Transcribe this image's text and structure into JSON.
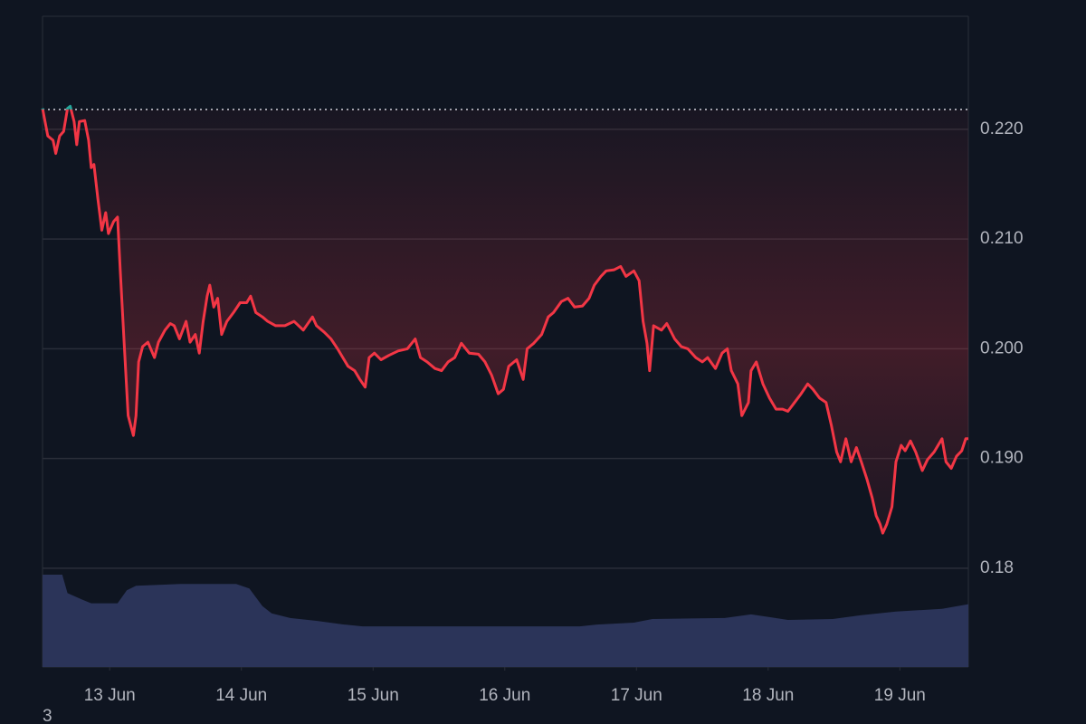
{
  "chart_data": {
    "type": "line",
    "x": [
      12.49,
      12.53,
      12.57,
      12.59,
      12.62,
      12.65,
      12.68,
      12.7,
      12.73,
      12.75,
      12.77,
      12.81,
      12.84,
      12.86,
      12.88,
      12.91,
      12.94,
      12.97,
      12.99,
      13.03,
      13.06,
      13.08,
      13.11,
      13.14,
      13.16,
      13.18,
      13.2,
      13.22,
      13.25,
      13.29,
      13.34,
      13.37,
      13.42,
      13.46,
      13.49,
      13.53,
      13.58,
      13.61,
      13.65,
      13.68,
      13.71,
      13.74,
      13.76,
      13.79,
      13.82,
      13.85,
      13.89,
      13.94,
      13.99,
      14.04,
      14.07,
      14.11,
      14.16,
      14.2,
      14.26,
      14.33,
      14.4,
      14.47,
      14.54,
      14.57,
      14.63,
      14.68,
      14.73,
      14.77,
      14.81,
      14.86,
      14.9,
      14.94,
      14.97,
      15.01,
      15.06,
      15.12,
      15.19,
      15.26,
      15.32,
      15.36,
      15.41,
      15.47,
      15.52,
      15.57,
      15.62,
      15.67,
      15.73,
      15.8,
      15.85,
      15.9,
      15.95,
      15.99,
      16.03,
      16.09,
      16.14,
      16.17,
      16.22,
      16.28,
      16.33,
      16.37,
      16.43,
      16.48,
      16.53,
      16.59,
      16.64,
      16.68,
      16.73,
      16.77,
      16.83,
      16.88,
      16.92,
      16.98,
      17.02,
      17.05,
      17.08,
      17.1,
      17.13,
      17.19,
      17.23,
      17.29,
      17.34,
      17.39,
      17.45,
      17.5,
      17.54,
      17.6,
      17.65,
      17.69,
      17.72,
      17.77,
      17.8,
      17.85,
      17.87,
      17.91,
      17.96,
      18.01,
      18.06,
      18.11,
      18.15,
      18.2,
      18.25,
      18.3,
      18.34,
      18.39,
      18.44,
      18.48,
      18.52,
      18.55,
      18.59,
      18.63,
      18.67,
      18.71,
      18.75,
      18.79,
      18.82,
      18.85,
      18.87,
      18.9,
      18.94,
      18.97,
      19.01,
      19.04,
      19.08,
      19.12,
      19.17,
      19.21,
      19.26,
      19.32,
      19.35,
      19.39,
      19.43,
      19.47,
      19.5,
      19.52
    ],
    "series": [
      {
        "color": "#f23645",
        "color_above": "#26a69a",
        "values": [
          0.2219,
          0.2194,
          0.219,
          0.2178,
          0.2194,
          0.2198,
          0.2219,
          0.2221,
          0.2207,
          0.2186,
          0.2207,
          0.2208,
          0.219,
          0.2165,
          0.2168,
          0.2137,
          0.2108,
          0.2124,
          0.2105,
          0.2116,
          0.212,
          0.2071,
          0.2005,
          0.1939,
          0.193,
          0.1921,
          0.1939,
          0.1988,
          0.2002,
          0.2006,
          0.1992,
          0.2006,
          0.2017,
          0.2023,
          0.2021,
          0.2009,
          0.2025,
          0.2006,
          0.2013,
          0.1996,
          0.2025,
          0.2048,
          0.2058,
          0.2038,
          0.2046,
          0.2013,
          0.2025,
          0.2033,
          0.2042,
          0.2042,
          0.2048,
          0.2033,
          0.2029,
          0.2025,
          0.2021,
          0.2021,
          0.2025,
          0.2017,
          0.2029,
          0.2021,
          0.2015,
          0.2009,
          0.2,
          0.1992,
          0.1984,
          0.198,
          0.1972,
          0.1965,
          0.1992,
          0.1996,
          0.199,
          0.1994,
          0.1998,
          0.2,
          0.2009,
          0.1992,
          0.1988,
          0.1982,
          0.198,
          0.1988,
          0.1992,
          0.2005,
          0.1996,
          0.1995,
          0.1988,
          0.1976,
          0.1959,
          0.1963,
          0.1984,
          0.199,
          0.1972,
          0.2,
          0.2005,
          0.2013,
          0.2029,
          0.2033,
          0.2043,
          0.2046,
          0.2038,
          0.2039,
          0.2046,
          0.2058,
          0.2066,
          0.2071,
          0.2072,
          0.2075,
          0.2066,
          0.2071,
          0.2062,
          0.2025,
          0.2005,
          0.198,
          0.2021,
          0.2017,
          0.2023,
          0.2009,
          0.2002,
          0.2,
          0.1992,
          0.1988,
          0.1992,
          0.1982,
          0.1996,
          0.2,
          0.198,
          0.1968,
          0.1939,
          0.1951,
          0.198,
          0.1988,
          0.1968,
          0.1955,
          0.1945,
          0.1945,
          0.1943,
          0.1951,
          0.1959,
          0.1968,
          0.1963,
          0.1955,
          0.1951,
          0.193,
          0.1906,
          0.1897,
          0.1918,
          0.1897,
          0.191,
          0.1896,
          0.1881,
          0.1864,
          0.1848,
          0.184,
          0.1832,
          0.184,
          0.1856,
          0.1897,
          0.1912,
          0.1907,
          0.1916,
          0.1906,
          0.1889,
          0.1899,
          0.1906,
          0.1918,
          0.1897,
          0.1891,
          0.1902,
          0.1907,
          0.1918,
          0.1918
        ]
      }
    ],
    "xlim": [
      12.49,
      19.52
    ],
    "xticks": [
      {
        "value": 13,
        "label": "13 Jun"
      },
      {
        "value": 14,
        "label": "14 Jun"
      },
      {
        "value": 15,
        "label": "15 Jun"
      },
      {
        "value": 16,
        "label": "16 Jun"
      },
      {
        "value": 17,
        "label": "17 Jun"
      },
      {
        "value": 18,
        "label": "18 Jun"
      },
      {
        "value": 19,
        "label": "19 Jun"
      }
    ],
    "ylim": [
      0.171,
      0.2303
    ],
    "yticks": [
      {
        "value": 0.22,
        "label": "0.220"
      },
      {
        "value": 0.21,
        "label": "0.210"
      },
      {
        "value": 0.2,
        "label": "0.200"
      },
      {
        "value": 0.19,
        "label": "0.190"
      },
      0.18
    ],
    "grid": true,
    "baseline": 0.2218,
    "volume": {
      "color": "#2b3459",
      "ylim": [
        0,
        100
      ],
      "x": [
        12.49,
        12.64,
        12.68,
        12.79,
        12.86,
        13.06,
        13.13,
        13.2,
        13.54,
        13.96,
        14.06,
        14.16,
        14.23,
        14.37,
        14.57,
        14.78,
        14.92,
        16.57,
        16.7,
        16.98,
        17.12,
        17.67,
        17.87,
        18.01,
        18.15,
        18.49,
        18.7,
        18.97,
        19.32,
        19.52
      ],
      "values": [
        100,
        100,
        80,
        73,
        69,
        69,
        83,
        88,
        90,
        90,
        85,
        66,
        58,
        53,
        50,
        46,
        44,
        44,
        46,
        48,
        52,
        53,
        57,
        54,
        51,
        52,
        56,
        60,
        63,
        68
      ]
    },
    "corner_text": "3"
  }
}
